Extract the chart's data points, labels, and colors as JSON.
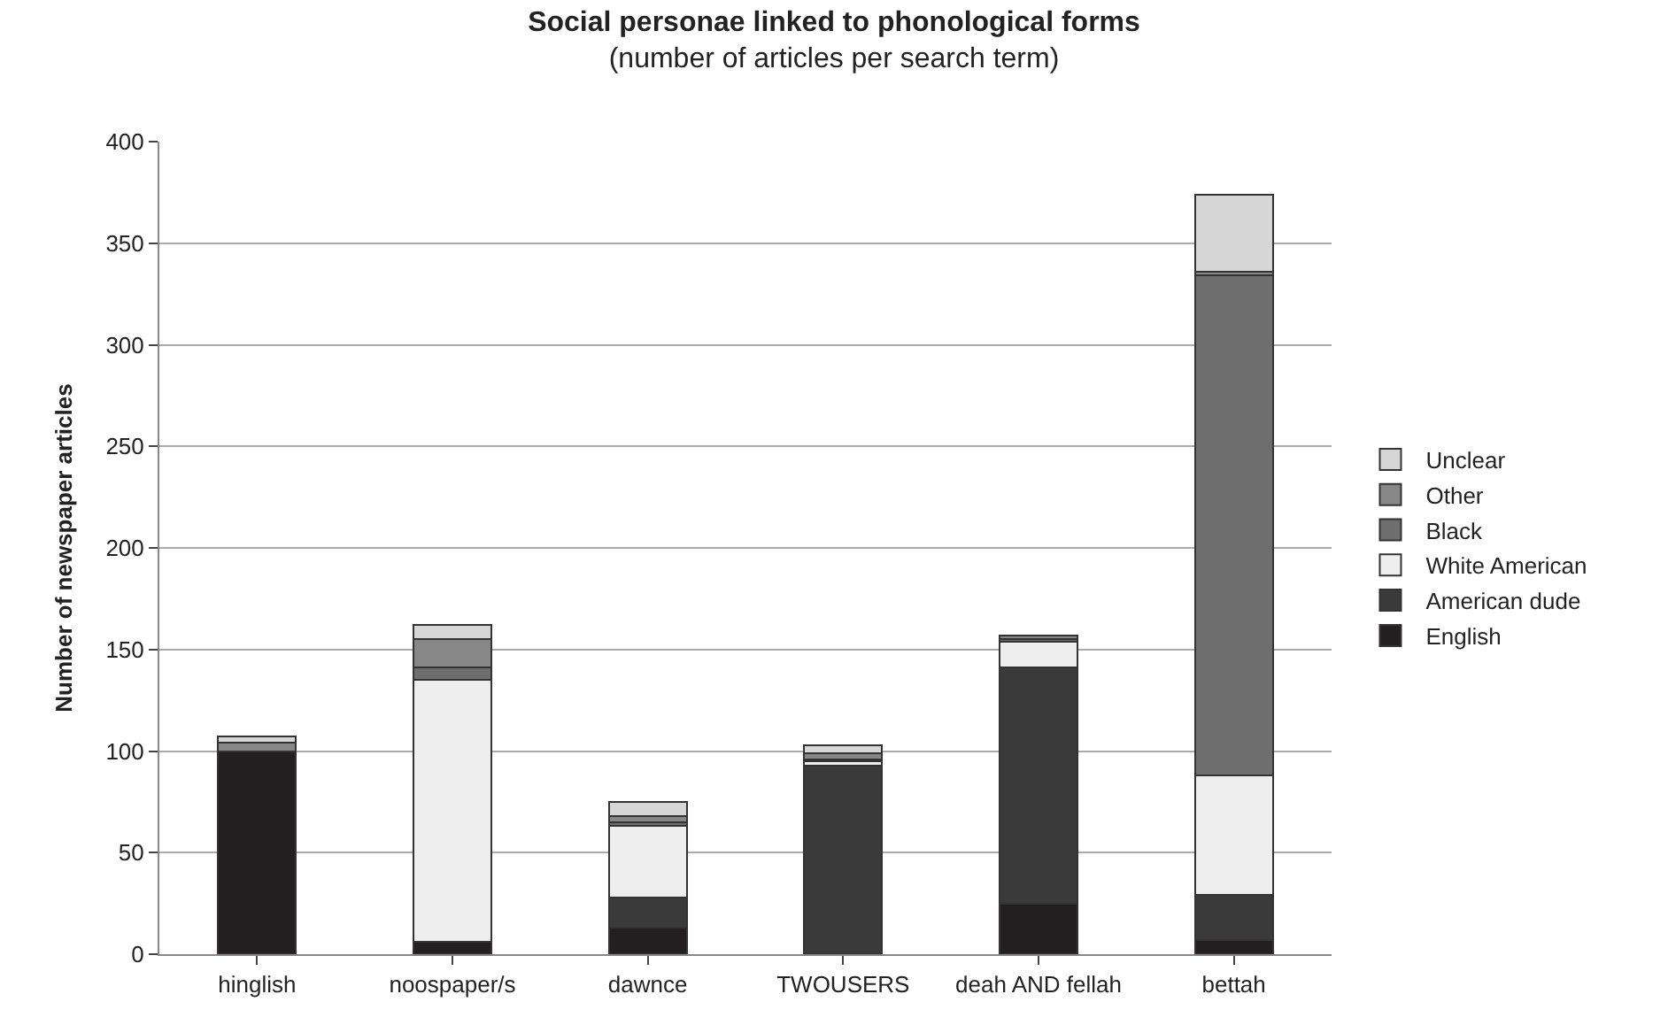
{
  "chart_data": {
    "type": "bar",
    "stacked": true,
    "title": "Social personae linked to phonological forms",
    "subtitle": "(number of articles per search term)",
    "ylabel": "Number of newspaper articles",
    "categories": [
      "hinglish",
      "noospaper/s",
      "dawnce",
      "TWOUSERS",
      "deah AND fellah",
      "bettah"
    ],
    "series": [
      {
        "name": "English",
        "color": "#231f20",
        "values": [
          100,
          6,
          13,
          null,
          25,
          7
        ]
      },
      {
        "name": "American dude",
        "color": "#3a3a3a",
        "values": [
          null,
          null,
          15,
          93,
          116,
          22
        ]
      },
      {
        "name": "White American",
        "color": "#eeeeee",
        "values": [
          null,
          129,
          35,
          2,
          13,
          59
        ]
      },
      {
        "name": "Black",
        "color": "#6e6e6e",
        "values": [
          null,
          6,
          2,
          1,
          1,
          246
        ]
      },
      {
        "name": "Other",
        "color": "#878787",
        "values": [
          4,
          14,
          3,
          3,
          2,
          2
        ]
      },
      {
        "name": "Unclear",
        "color": "#d6d6d6",
        "values": [
          3,
          7,
          7,
          4,
          null,
          38
        ]
      }
    ],
    "ylim": [
      0,
      400
    ],
    "yticks": [
      0,
      50,
      100,
      150,
      200,
      250,
      300,
      350,
      400
    ],
    "grid": "y",
    "legend": "right"
  }
}
